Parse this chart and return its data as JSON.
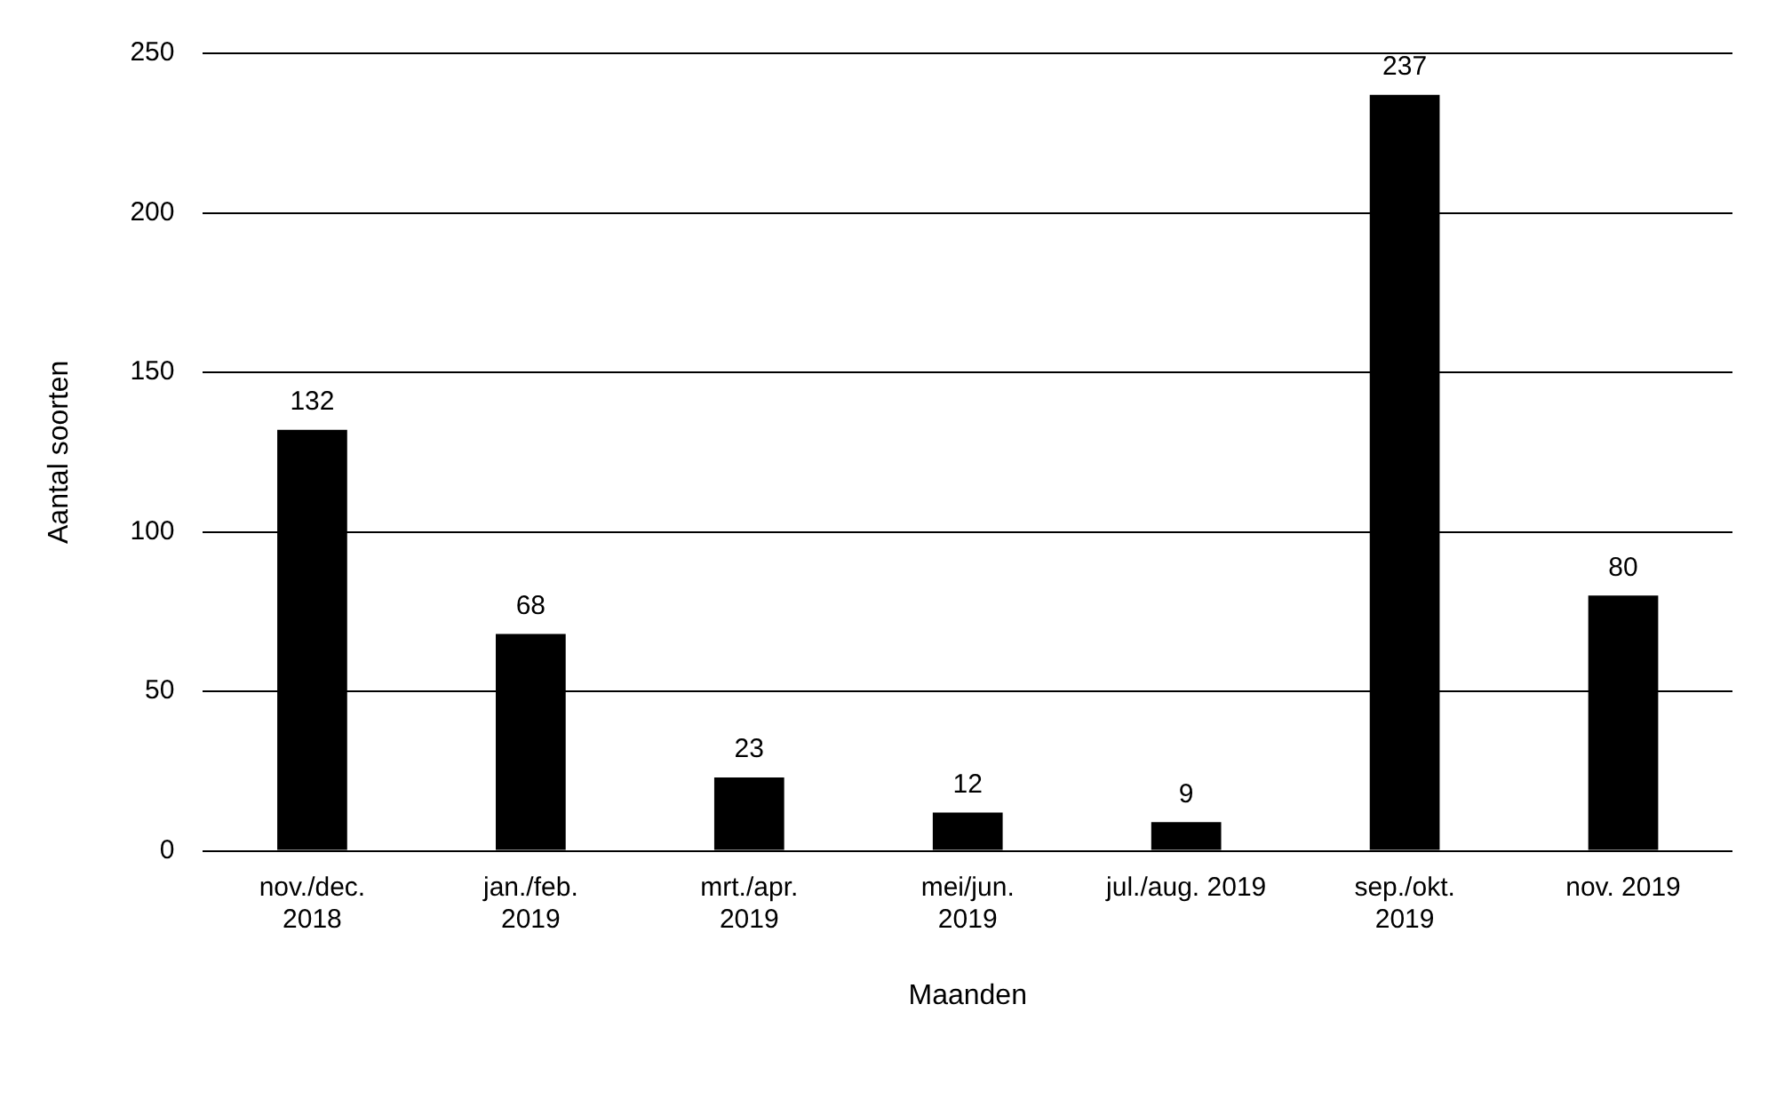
{
  "chart_data": {
    "type": "bar",
    "xlabel": "Maanden",
    "ylabel": "Aantal soorten",
    "categories": [
      "nov./dec.\n2018",
      "jan./feb.\n2019",
      "mrt./apr.\n2019",
      "mei/jun.\n2019",
      "jul./aug. 2019",
      "sep./okt.\n2019",
      "nov. 2019"
    ],
    "values": [
      132,
      68,
      23,
      12,
      9,
      237,
      80
    ],
    "color": "#000000",
    "ylim": [
      0,
      250
    ],
    "yticks": [
      0,
      50,
      100,
      150,
      200,
      250
    ],
    "grid": "y",
    "data_labels": true
  }
}
